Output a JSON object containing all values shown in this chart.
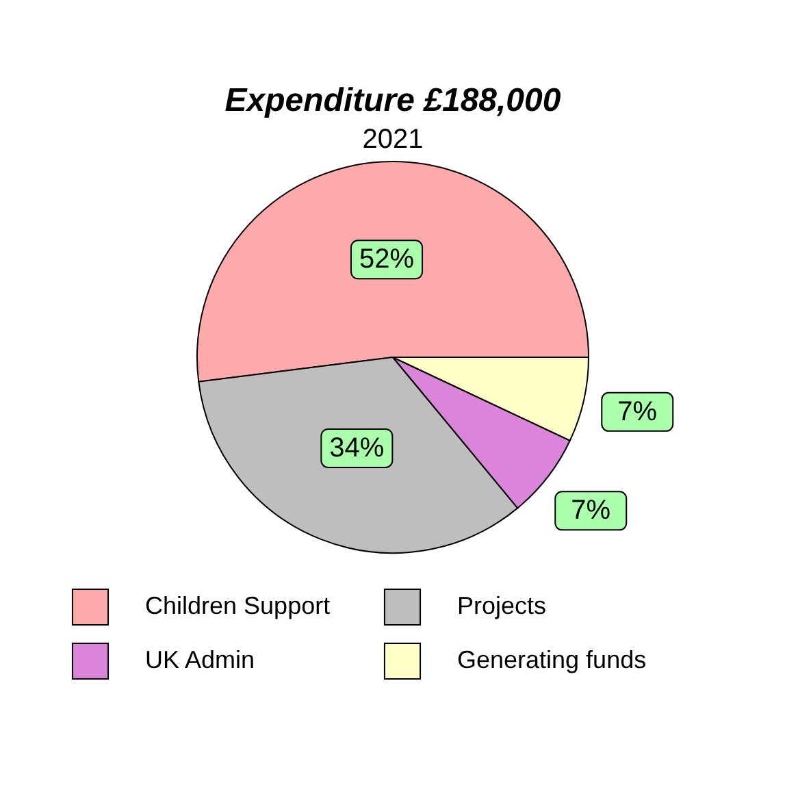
{
  "chart_data": {
    "type": "pie",
    "title": "Expenditure £188,000",
    "subtitle": "2021",
    "categories": [
      "Children Support",
      "Projects",
      "UK Admin",
      "Generating funds"
    ],
    "values": [
      52,
      34,
      7,
      7
    ],
    "value_labels": [
      "52%",
      "34%",
      "7%",
      "7%"
    ],
    "colors": [
      "#ffaaaa",
      "#bebebe",
      "#da84da",
      "#ffffc8"
    ],
    "legend": "bottom"
  }
}
